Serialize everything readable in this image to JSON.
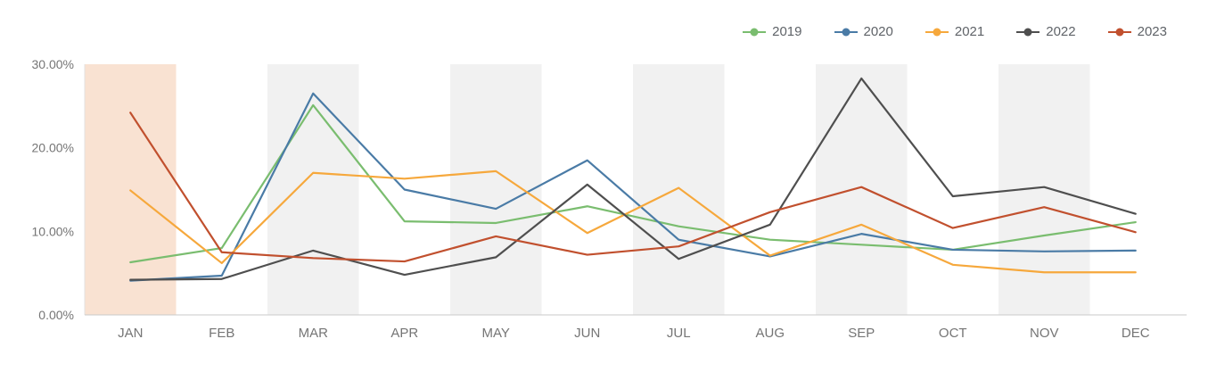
{
  "chart_data": {
    "type": "line",
    "title": "",
    "xlabel": "",
    "ylabel": "",
    "categories": [
      "JAN",
      "FEB",
      "MAR",
      "APR",
      "MAY",
      "JUN",
      "JUL",
      "AUG",
      "SEP",
      "OCT",
      "NOV",
      "DEC"
    ],
    "series": [
      {
        "name": "2019",
        "color": "#7abd6f",
        "values": [
          6.3,
          8.0,
          25.1,
          11.2,
          11.0,
          13.0,
          10.6,
          9.0,
          8.4,
          7.8,
          9.5,
          11.1
        ]
      },
      {
        "name": "2020",
        "color": "#4a7ba6",
        "values": [
          4.1,
          4.7,
          26.5,
          15.0,
          12.7,
          18.5,
          9.0,
          7.0,
          9.7,
          7.8,
          7.6,
          7.7
        ]
      },
      {
        "name": "2021",
        "color": "#f6a83c",
        "values": [
          14.9,
          6.2,
          17.0,
          16.3,
          17.2,
          9.8,
          15.2,
          7.1,
          10.8,
          6.0,
          5.1,
          5.1
        ]
      },
      {
        "name": "2022",
        "color": "#4f4f4f",
        "values": [
          4.2,
          4.3,
          7.7,
          4.8,
          6.9,
          15.6,
          6.7,
          10.8,
          28.3,
          14.2,
          15.3,
          12.1
        ]
      },
      {
        "name": "2023",
        "color": "#c1502e",
        "values": [
          24.2,
          7.5,
          6.8,
          6.4,
          9.4,
          7.2,
          8.2,
          12.3,
          15.3,
          10.4,
          12.9,
          9.9
        ]
      }
    ],
    "ylim": [
      0,
      30
    ],
    "yticks": [
      {
        "value": 0,
        "label": "0.00%"
      },
      {
        "value": 10,
        "label": "10.00%"
      },
      {
        "value": 20,
        "label": "20.00%"
      },
      {
        "value": 30,
        "label": "30.00%"
      }
    ],
    "grid": false,
    "legend_position": "top-right",
    "plot_bands": {
      "months": [
        "JAN",
        "MAR",
        "MAY",
        "JUL",
        "SEP",
        "NOV"
      ],
      "default_color": "#f1f1f1",
      "highlight": {
        "month": "JAN",
        "color": "#f9e2d2"
      }
    },
    "axis_text_color": "#757575",
    "x_axis_line_color": "#c9c9c9",
    "y_axis_line_color": "#e3e3e3"
  }
}
